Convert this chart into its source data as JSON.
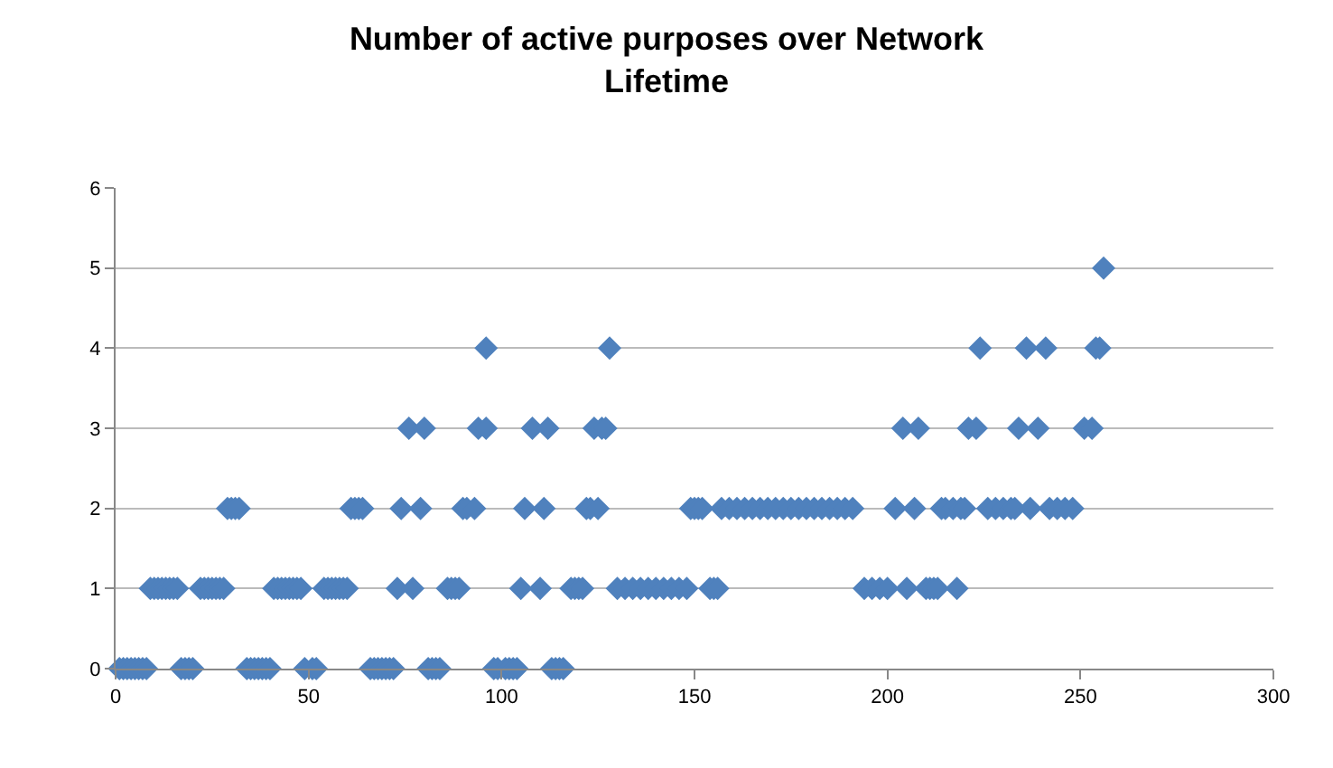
{
  "chart_data": {
    "type": "scatter",
    "title": "Number of active purposes over Network Lifetime",
    "x": [
      1,
      2,
      3,
      4,
      5,
      6,
      7,
      8,
      17,
      18,
      19,
      20,
      34,
      35,
      36,
      37,
      38,
      39,
      40,
      49,
      51,
      52,
      66,
      67,
      68,
      69,
      70,
      71,
      72,
      81,
      82,
      83,
      84,
      98,
      99,
      101,
      102,
      103,
      104,
      113,
      114,
      115,
      116,
      9,
      10,
      11,
      12,
      13,
      14,
      15,
      16,
      22,
      23,
      24,
      25,
      26,
      27,
      28,
      41,
      42,
      43,
      44,
      45,
      46,
      47,
      48,
      54,
      55,
      56,
      57,
      58,
      59,
      60,
      73,
      77,
      86,
      87,
      88,
      89,
      105,
      110,
      118,
      119,
      120,
      121,
      130,
      132,
      134,
      136,
      138,
      140,
      142,
      144,
      146,
      148,
      154,
      155,
      156,
      194,
      196,
      198,
      200,
      205,
      210,
      211,
      212,
      213,
      218,
      29,
      30,
      31,
      32,
      61,
      62,
      63,
      64,
      74,
      79,
      90,
      91,
      93,
      106,
      111,
      122,
      123,
      125,
      149,
      150,
      151,
      152,
      157,
      159,
      161,
      163,
      165,
      167,
      169,
      171,
      173,
      175,
      177,
      179,
      181,
      183,
      185,
      187,
      189,
      191,
      202,
      207,
      214,
      215,
      217,
      219,
      220,
      226,
      228,
      230,
      232,
      233,
      237,
      242,
      244,
      246,
      248,
      76,
      80,
      94,
      96,
      108,
      112,
      124,
      126,
      127,
      204,
      208,
      221,
      223,
      234,
      239,
      251,
      253,
      96,
      128,
      224,
      236,
      241,
      254,
      255,
      256
    ],
    "values": [
      0,
      0,
      0,
      0,
      0,
      0,
      0,
      0,
      0,
      0,
      0,
      0,
      0,
      0,
      0,
      0,
      0,
      0,
      0,
      0,
      0,
      0,
      0,
      0,
      0,
      0,
      0,
      0,
      0,
      0,
      0,
      0,
      0,
      0,
      0,
      0,
      0,
      0,
      0,
      0,
      0,
      0,
      0,
      1,
      1,
      1,
      1,
      1,
      1,
      1,
      1,
      1,
      1,
      1,
      1,
      1,
      1,
      1,
      1,
      1,
      1,
      1,
      1,
      1,
      1,
      1,
      1,
      1,
      1,
      1,
      1,
      1,
      1,
      1,
      1,
      1,
      1,
      1,
      1,
      1,
      1,
      1,
      1,
      1,
      1,
      1,
      1,
      1,
      1,
      1,
      1,
      1,
      1,
      1,
      1,
      1,
      1,
      1,
      1,
      1,
      1,
      1,
      1,
      1,
      1,
      1,
      1,
      1,
      2,
      2,
      2,
      2,
      2,
      2,
      2,
      2,
      2,
      2,
      2,
      2,
      2,
      2,
      2,
      2,
      2,
      2,
      2,
      2,
      2,
      2,
      2,
      2,
      2,
      2,
      2,
      2,
      2,
      2,
      2,
      2,
      2,
      2,
      2,
      2,
      2,
      2,
      2,
      2,
      2,
      2,
      2,
      2,
      2,
      2,
      2,
      2,
      2,
      2,
      2,
      2,
      2,
      2,
      2,
      2,
      2,
      3,
      3,
      3,
      3,
      3,
      3,
      3,
      3,
      3,
      3,
      3,
      3,
      3,
      3,
      3,
      3,
      3,
      4,
      4,
      4,
      4,
      4,
      4,
      4,
      5
    ],
    "color": "#4f81bd",
    "marker": "diamond",
    "xlim": [
      0,
      300
    ],
    "xticks": [
      0,
      50,
      100,
      150,
      200,
      250,
      300
    ],
    "ylim": [
      0,
      6
    ],
    "yticks": [
      0,
      1,
      2,
      3,
      4,
      5,
      6
    ],
    "grid": "y",
    "legend": false
  }
}
